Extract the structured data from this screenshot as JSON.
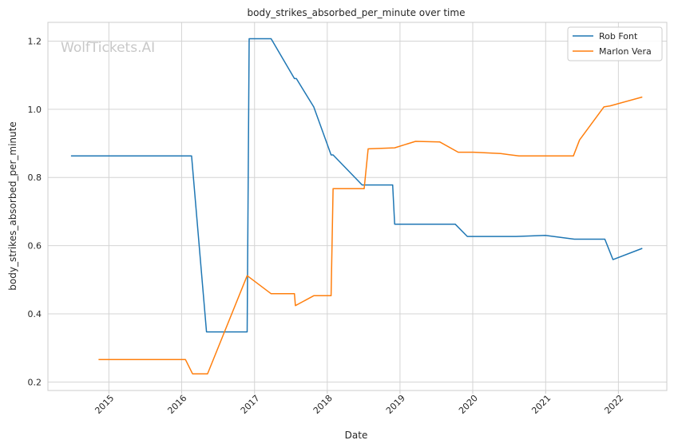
{
  "chart_data": {
    "type": "line",
    "title": "body_strikes_absorbed_per_minute over time",
    "xlabel": "Date",
    "ylabel": "body_strikes_absorbed_per_minute",
    "watermark": "WolfTickets.AI",
    "xlim": [
      "2014-03-01",
      "2022-09-01"
    ],
    "ylim": [
      0.175,
      1.255
    ],
    "x_ticks": [
      "2015-01-01",
      "2016-01-01",
      "2017-01-01",
      "2018-01-01",
      "2019-01-01",
      "2020-01-01",
      "2021-01-01",
      "2022-01-01"
    ],
    "x_tick_labels": [
      "2015",
      "2016",
      "2017",
      "2018",
      "2019",
      "2020",
      "2021",
      "2022"
    ],
    "y_ticks": [
      0.2,
      0.4,
      0.6,
      0.8,
      1.0,
      1.2
    ],
    "y_tick_labels": [
      "0.2",
      "0.4",
      "0.6",
      "0.8",
      "1.0",
      "1.2"
    ],
    "grid": true,
    "legend_position": "top-right",
    "series": [
      {
        "name": "Rob Font",
        "color": "#1f77b4",
        "points": [
          [
            "2014-06-25",
            0.863
          ],
          [
            "2016-02-20",
            0.863
          ],
          [
            "2016-05-05",
            0.347
          ],
          [
            "2016-11-25",
            0.347
          ],
          [
            "2016-12-05",
            1.207
          ],
          [
            "2017-03-25",
            1.207
          ],
          [
            "2017-07-20",
            1.09
          ],
          [
            "2017-07-30",
            1.09
          ],
          [
            "2017-10-25",
            1.007
          ],
          [
            "2018-01-20",
            0.866
          ],
          [
            "2018-01-30",
            0.866
          ],
          [
            "2018-06-25",
            0.778
          ],
          [
            "2018-11-25",
            0.778
          ],
          [
            "2018-12-05",
            0.663
          ],
          [
            "2019-10-05",
            0.663
          ],
          [
            "2019-12-05",
            0.627
          ],
          [
            "2020-08-05",
            0.627
          ],
          [
            "2020-12-30",
            0.63
          ],
          [
            "2021-05-25",
            0.619
          ],
          [
            "2021-10-25",
            0.619
          ],
          [
            "2021-12-05",
            0.559
          ],
          [
            "2022-05-01",
            0.592
          ]
        ]
      },
      {
        "name": "Marlon Vera",
        "color": "#ff7f0e",
        "points": [
          [
            "2014-11-10",
            0.266
          ],
          [
            "2016-01-20",
            0.266
          ],
          [
            "2016-02-25",
            0.224
          ],
          [
            "2016-05-10",
            0.224
          ],
          [
            "2016-11-25",
            0.512
          ],
          [
            "2017-03-25",
            0.459
          ],
          [
            "2017-07-20",
            0.459
          ],
          [
            "2017-07-25",
            0.424
          ],
          [
            "2017-10-25",
            0.453
          ],
          [
            "2018-01-20",
            0.453
          ],
          [
            "2018-01-30",
            0.767
          ],
          [
            "2018-07-05",
            0.767
          ],
          [
            "2018-07-25",
            0.884
          ],
          [
            "2018-12-05",
            0.887
          ],
          [
            "2019-03-20",
            0.906
          ],
          [
            "2019-07-20",
            0.904
          ],
          [
            "2019-10-20",
            0.874
          ],
          [
            "2020-01-05",
            0.874
          ],
          [
            "2020-05-20",
            0.87
          ],
          [
            "2020-08-20",
            0.863
          ],
          [
            "2021-05-20",
            0.863
          ],
          [
            "2021-06-20",
            0.91
          ],
          [
            "2021-10-20",
            1.007
          ],
          [
            "2021-11-20",
            1.01
          ],
          [
            "2022-05-01",
            1.036
          ]
        ]
      }
    ]
  }
}
